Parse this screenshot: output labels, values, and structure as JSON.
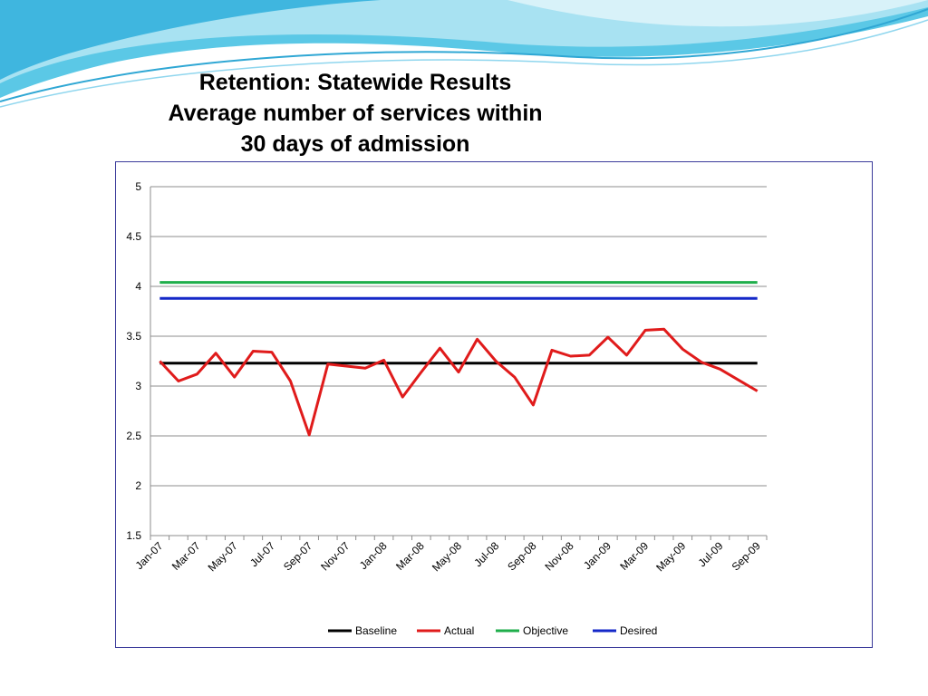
{
  "slide": {
    "title_lines": [
      "Retention: Statewide Results",
      "Average number of services within",
      "30 days of admission"
    ]
  },
  "chart_data": {
    "type": "line",
    "title": "",
    "xlabel": "",
    "ylabel": "",
    "ylim": [
      1.5,
      5
    ],
    "yticks": [
      "5",
      "4.5",
      "4",
      "3.5",
      "3",
      "2.5",
      "2",
      "1.5"
    ],
    "grid": true,
    "legend_position": "bottom",
    "x_tick_labels": [
      "Jan-07",
      "Mar-07",
      "May-07",
      "Jul-07",
      "Sep-07",
      "Nov-07",
      "Jan-08",
      "Mar-08",
      "May-08",
      "Jul-08",
      "Sep-08",
      "Nov-08",
      "Jan-09",
      "Mar-09",
      "May-09",
      "Jul-09",
      "Sep-09"
    ],
    "x": [
      "Jan-07",
      "Feb-07",
      "Mar-07",
      "Apr-07",
      "May-07",
      "Jun-07",
      "Jul-07",
      "Aug-07",
      "Sep-07",
      "Oct-07",
      "Nov-07",
      "Dec-07",
      "Jan-08",
      "Feb-08",
      "Mar-08",
      "Apr-08",
      "May-08",
      "Jun-08",
      "Jul-08",
      "Aug-08",
      "Sep-08",
      "Oct-08",
      "Nov-08",
      "Dec-08",
      "Jan-09",
      "Feb-09",
      "Mar-09",
      "Apr-09",
      "May-09",
      "Jun-09",
      "Jul-09",
      "Aug-09",
      "Sep-09"
    ],
    "series": [
      {
        "name": "Baseline",
        "color": "#000000",
        "values": [
          3.23,
          3.23,
          3.23,
          3.23,
          3.23,
          3.23,
          3.23,
          3.23,
          3.23,
          3.23,
          3.23,
          3.23,
          3.23,
          3.23,
          3.23,
          3.23,
          3.23,
          3.23,
          3.23,
          3.23,
          3.23,
          3.23,
          3.23,
          3.23,
          3.23,
          3.23,
          3.23,
          3.23,
          3.23,
          3.23,
          3.23,
          3.23,
          3.23
        ]
      },
      {
        "name": "Actual",
        "color": "#e01b1b",
        "values": [
          3.25,
          3.05,
          3.12,
          3.33,
          3.09,
          3.35,
          3.34,
          3.05,
          2.51,
          3.22,
          3.2,
          3.18,
          3.26,
          2.89,
          3.14,
          3.38,
          3.14,
          3.47,
          3.25,
          3.09,
          2.81,
          3.36,
          3.3,
          3.31,
          3.49,
          3.31,
          3.56,
          3.57,
          3.37,
          3.24,
          3.17,
          3.06,
          2.95
        ]
      },
      {
        "name": "Objective",
        "color": "#1fae4b",
        "values": [
          4.04,
          4.04,
          4.04,
          4.04,
          4.04,
          4.04,
          4.04,
          4.04,
          4.04,
          4.04,
          4.04,
          4.04,
          4.04,
          4.04,
          4.04,
          4.04,
          4.04,
          4.04,
          4.04,
          4.04,
          4.04,
          4.04,
          4.04,
          4.04,
          4.04,
          4.04,
          4.04,
          4.04,
          4.04,
          4.04,
          4.04,
          4.04,
          4.04
        ]
      },
      {
        "name": "Desired",
        "color": "#1428c8",
        "values": [
          3.88,
          3.88,
          3.88,
          3.88,
          3.88,
          3.88,
          3.88,
          3.88,
          3.88,
          3.88,
          3.88,
          3.88,
          3.88,
          3.88,
          3.88,
          3.88,
          3.88,
          3.88,
          3.88,
          3.88,
          3.88,
          3.88,
          3.88,
          3.88,
          3.88,
          3.88,
          3.88,
          3.88,
          3.88,
          3.88,
          3.88,
          3.88,
          3.88
        ]
      }
    ]
  }
}
